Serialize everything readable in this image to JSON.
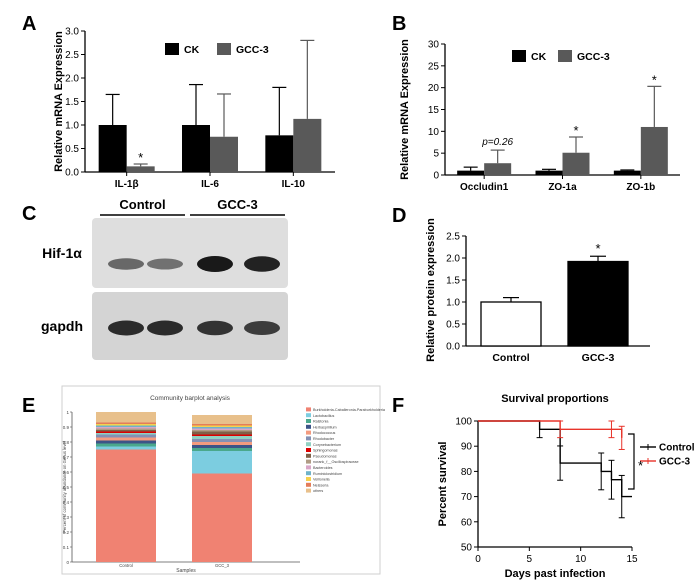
{
  "figure": {
    "letters": [
      "A",
      "B",
      "C",
      "D",
      "E",
      "F"
    ]
  },
  "chart_data": [
    {
      "panel": "A",
      "type": "bar",
      "ylabel": "Relative mRNA Expression",
      "ylim": [
        0,
        3
      ],
      "yticks": [
        0,
        0.5,
        1,
        1.5,
        2,
        2.5,
        3
      ],
      "ytick_labels": [
        "0.0",
        "0.5",
        "1.0",
        "1.5",
        "2.0",
        "2.5",
        "3.0"
      ],
      "categories": [
        "IL-1β",
        "IL-6",
        "IL-10"
      ],
      "series": [
        {
          "name": "CK",
          "color": "#000000",
          "values": [
            1.0,
            1.0,
            0.78
          ],
          "errors": [
            0.65,
            0.86,
            1.02
          ]
        },
        {
          "name": "GCC-3",
          "color": "#595959",
          "values": [
            0.12,
            0.75,
            1.13
          ],
          "errors": [
            0.05,
            0.91,
            1.67
          ]
        }
      ],
      "annotations": [
        {
          "category": 0,
          "series": 1,
          "text": "*"
        }
      ]
    },
    {
      "panel": "B",
      "type": "bar",
      "ylabel": "Relative mRNA Expression",
      "ylim": [
        0,
        30
      ],
      "yticks": [
        0,
        5,
        10,
        15,
        20,
        25,
        30
      ],
      "ytick_labels": [
        "0",
        "5",
        "10",
        "15",
        "20",
        "25",
        "30"
      ],
      "categories": [
        "Occludin1",
        "ZO-1a",
        "ZO-1b"
      ],
      "series": [
        {
          "name": "CK",
          "color": "#000000",
          "values": [
            1.0,
            1.0,
            1.0
          ],
          "errors": [
            0.8,
            0.3,
            0.15
          ]
        },
        {
          "name": "GCC-3",
          "color": "#595959",
          "values": [
            2.7,
            5.1,
            11.0
          ],
          "errors": [
            3.0,
            3.6,
            9.3
          ]
        }
      ],
      "annotations": [
        {
          "category": 0,
          "series": 1,
          "text": "p=0.26"
        },
        {
          "category": 1,
          "series": 1,
          "text": "*"
        },
        {
          "category": 2,
          "series": 1,
          "text": "*"
        }
      ]
    },
    {
      "panel": "C",
      "type": "blot",
      "groups": [
        "Control",
        "GCC-3"
      ],
      "rows": [
        "Hif-1α",
        "gapdh"
      ],
      "band_intensity": [
        [
          0.55,
          0.5,
          1.0,
          0.95
        ],
        [
          0.9,
          0.9,
          0.85,
          0.8
        ]
      ]
    },
    {
      "panel": "D",
      "type": "bar",
      "ylabel": "Relative protein expression",
      "ylim": [
        0,
        2.5
      ],
      "yticks": [
        0,
        0.5,
        1,
        1.5,
        2,
        2.5
      ],
      "ytick_labels": [
        "0.0",
        "0.5",
        "1.0",
        "1.5",
        "2.0",
        "2.5"
      ],
      "categories": [
        "Control",
        "GCC-3"
      ],
      "values": [
        1.0,
        1.92
      ],
      "errors": [
        0.1,
        0.12
      ],
      "colors": [
        "#ffffff",
        "#000000"
      ],
      "annotations": [
        {
          "category": 1,
          "text": "*"
        }
      ]
    },
    {
      "panel": "E",
      "type": "bar",
      "stacked": true,
      "title": "Community barplot analysis",
      "xlabel": "Samples",
      "ylabel": "Percent of community abundance on Genus level",
      "ylim": [
        0,
        1
      ],
      "yticks": [
        0,
        0.1,
        0.2,
        0.3,
        0.4,
        0.5,
        0.6,
        0.7,
        0.8,
        0.9,
        1
      ],
      "ytick_labels": [
        "0",
        "0.1",
        "0.2",
        "0.3",
        "0.4",
        "0.5",
        "0.6",
        "0.7",
        "0.8",
        "0.9",
        "1"
      ],
      "categories": [
        "Control",
        "GCC_3"
      ],
      "series": [
        {
          "name": "Burkholderia-Caballeronia-Paraburkholderia",
          "color": "#f08272",
          "values": [
            0.75,
            0.59
          ]
        },
        {
          "name": "Lactobacillus",
          "color": "#7ccde0",
          "values": [
            0.02,
            0.15
          ]
        },
        {
          "name": "Ralstonia",
          "color": "#4aa88c",
          "values": [
            0.02,
            0.02
          ]
        },
        {
          "name": "Herbaspirillum",
          "color": "#3c5488",
          "values": [
            0.02,
            0.02
          ]
        },
        {
          "name": "Rhodococcus",
          "color": "#f39b7f",
          "values": [
            0.02,
            0.02
          ]
        },
        {
          "name": "Rhodobacter",
          "color": "#8491b4",
          "values": [
            0.02,
            0.02
          ]
        },
        {
          "name": "Corynebacterium",
          "color": "#91d1c2",
          "values": [
            0.01,
            0.02
          ]
        },
        {
          "name": "Sphingomonas",
          "color": "#dc0000",
          "values": [
            0.01,
            0.01
          ]
        },
        {
          "name": "Pseudomonas",
          "color": "#7e6148",
          "values": [
            0.01,
            0.02
          ]
        },
        {
          "name": "norank_f__Oscillospiraceae",
          "color": "#b09c85",
          "values": [
            0.01,
            0.01
          ]
        },
        {
          "name": "Bacteroides",
          "color": "#d9a6c7",
          "values": [
            0.01,
            0.01
          ]
        },
        {
          "name": "Ruminiclostridium",
          "color": "#6fb3c9",
          "values": [
            0.01,
            0.01
          ]
        },
        {
          "name": "Veillonella",
          "color": "#f6d14c",
          "values": [
            0.01,
            0.01
          ]
        },
        {
          "name": "Neisseria",
          "color": "#e47d5a",
          "values": [
            0.01,
            0.01
          ]
        },
        {
          "name": "others",
          "color": "#e8c08b",
          "values": [
            0.07,
            0.06
          ]
        }
      ]
    },
    {
      "panel": "F",
      "type": "line",
      "step": true,
      "title": "Survival proportions",
      "xlabel": "Days past infection",
      "ylabel": "Percent survival",
      "xlim": [
        0,
        15
      ],
      "ylim": [
        50,
        100
      ],
      "xticks": [
        0,
        5,
        10,
        15
      ],
      "yticks": [
        50,
        60,
        70,
        80,
        90,
        100
      ],
      "legend_position": "right",
      "series": [
        {
          "name": "Control",
          "color": "#000000",
          "x": [
            0,
            6,
            8,
            12,
            13,
            14,
            15
          ],
          "y": [
            100,
            96.7,
            83.3,
            80,
            76.7,
            70,
            70
          ],
          "errors": [
            0,
            3.3,
            6.8,
            7.3,
            7.7,
            8.4,
            0
          ]
        },
        {
          "name": "GCC-3",
          "color": "#e8332a",
          "x": [
            0,
            8,
            13,
            14
          ],
          "y": [
            100,
            96.7,
            96.7,
            93.3
          ],
          "errors": [
            0,
            3.3,
            3.3,
            4.6
          ]
        }
      ],
      "annotations": [
        {
          "text": "*"
        }
      ]
    }
  ]
}
